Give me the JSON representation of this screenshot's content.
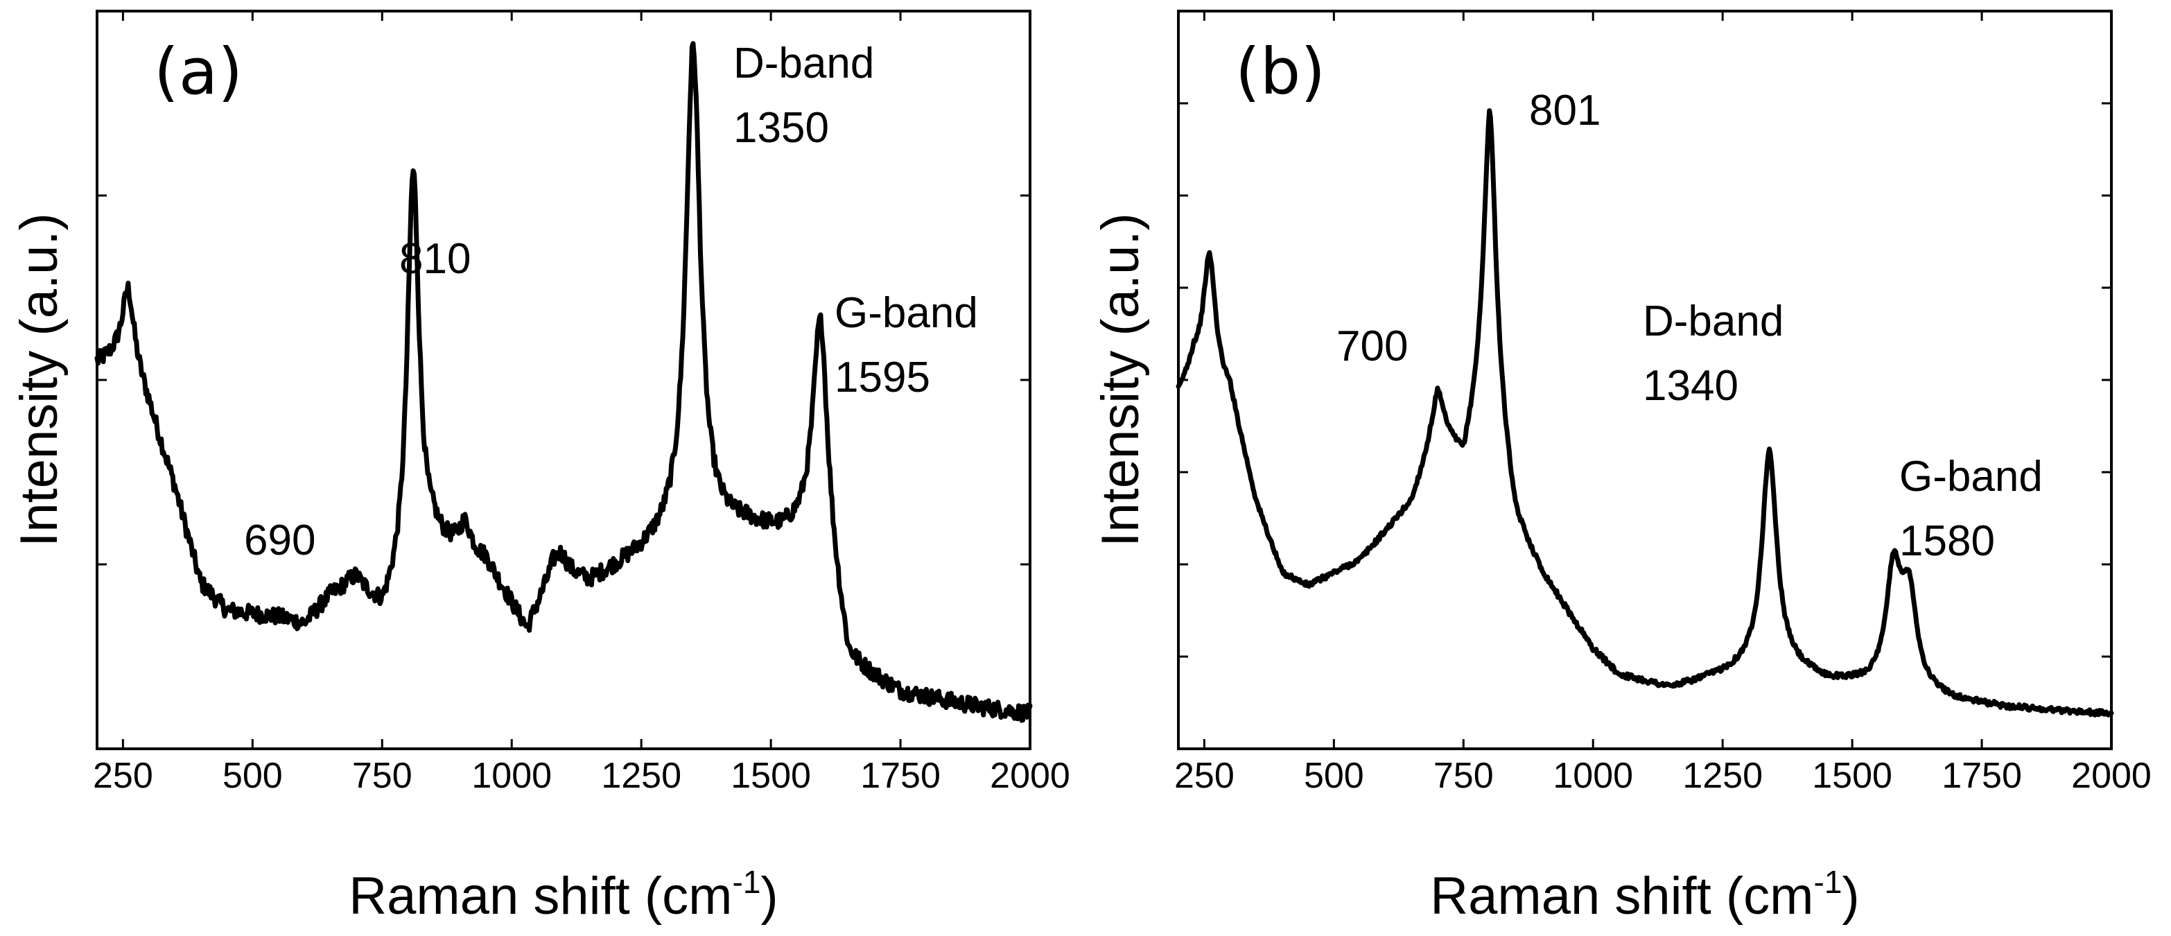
{
  "chart_data": [
    {
      "type": "line",
      "panel_label": "(a)",
      "xlabel": "Raman shift (cm",
      "xlabel_sup": "-1",
      "xlabel_end": ")",
      "ylabel": "Intensity (a.u.)",
      "xlim": [
        200,
        2000
      ],
      "ylim": [
        0,
        1
      ],
      "x_ticks": [
        250,
        500,
        750,
        1000,
        1250,
        1500,
        1750,
        2000
      ],
      "y_tick_count": 3,
      "noise": 0.012,
      "baseline": [
        [
          200,
          0.54
        ],
        [
          260,
          0.56
        ],
        [
          300,
          0.48
        ],
        [
          350,
          0.36
        ],
        [
          400,
          0.22
        ],
        [
          450,
          0.18
        ],
        [
          550,
          0.17
        ],
        [
          600,
          0.16
        ],
        [
          650,
          0.2
        ],
        [
          700,
          0.22
        ],
        [
          750,
          0.17
        ],
        [
          850,
          0.27
        ],
        [
          950,
          0.25
        ],
        [
          1030,
          0.15
        ],
        [
          1080,
          0.24
        ],
        [
          1150,
          0.22
        ],
        [
          1200,
          0.24
        ],
        [
          1300,
          0.28
        ],
        [
          1450,
          0.3
        ],
        [
          1520,
          0.29
        ],
        [
          1600,
          0.3
        ],
        [
          1650,
          0.1
        ],
        [
          1750,
          0.06
        ],
        [
          1900,
          0.04
        ],
        [
          2000,
          0.03
        ]
      ],
      "peaks": [
        {
          "x": 810,
          "y": 0.82,
          "label": "810"
        },
        {
          "x": 1350,
          "y": 1.0,
          "label": "1350",
          "name": "D-band"
        },
        {
          "x": 1595,
          "y": 0.6,
          "label": "1595",
          "name": "G-band"
        },
        {
          "x": 690,
          "y": 0.22,
          "label": "690"
        },
        {
          "x": 910,
          "y": 0.3
        },
        {
          "x": 260,
          "y": 0.65
        },
        {
          "x": 1095,
          "y": 0.26
        }
      ]
    },
    {
      "type": "line",
      "panel_label": "(b)",
      "xlabel": "Raman shift (cm",
      "xlabel_sup": "-1",
      "xlabel_end": ")",
      "ylabel": "Intensity (a.u.)",
      "xlim": [
        200,
        2000
      ],
      "ylim": [
        0,
        1
      ],
      "x_ticks": [
        250,
        500,
        750,
        1000,
        1250,
        1500,
        1750,
        2000
      ],
      "y_tick_count": 7,
      "noise": 0.004,
      "baseline": [
        [
          200,
          0.5
        ],
        [
          230,
          0.55
        ],
        [
          300,
          0.5
        ],
        [
          350,
          0.33
        ],
        [
          400,
          0.22
        ],
        [
          450,
          0.2
        ],
        [
          550,
          0.24
        ],
        [
          650,
          0.33
        ],
        [
          700,
          0.45
        ],
        [
          750,
          0.39
        ],
        [
          800,
          0.55
        ],
        [
          850,
          0.3
        ],
        [
          900,
          0.22
        ],
        [
          1000,
          0.1
        ],
        [
          1050,
          0.06
        ],
        [
          1100,
          0.05
        ],
        [
          1150,
          0.04
        ],
        [
          1250,
          0.06
        ],
        [
          1350,
          0.08
        ],
        [
          1450,
          0.05
        ],
        [
          1600,
          0.04
        ],
        [
          1700,
          0.02
        ],
        [
          1800,
          0.01
        ],
        [
          2000,
          0.0
        ]
      ],
      "peaks": [
        {
          "x": 260,
          "y": 0.72
        },
        {
          "x": 700,
          "y": 0.5,
          "label": "700"
        },
        {
          "x": 801,
          "y": 0.94,
          "label": "801"
        },
        {
          "x": 1340,
          "y": 0.41,
          "label": "1340",
          "name": "D-band"
        },
        {
          "x": 1580,
          "y": 0.22,
          "label": "1580",
          "name": "G-band"
        },
        {
          "x": 1610,
          "y": 0.18
        }
      ]
    }
  ]
}
